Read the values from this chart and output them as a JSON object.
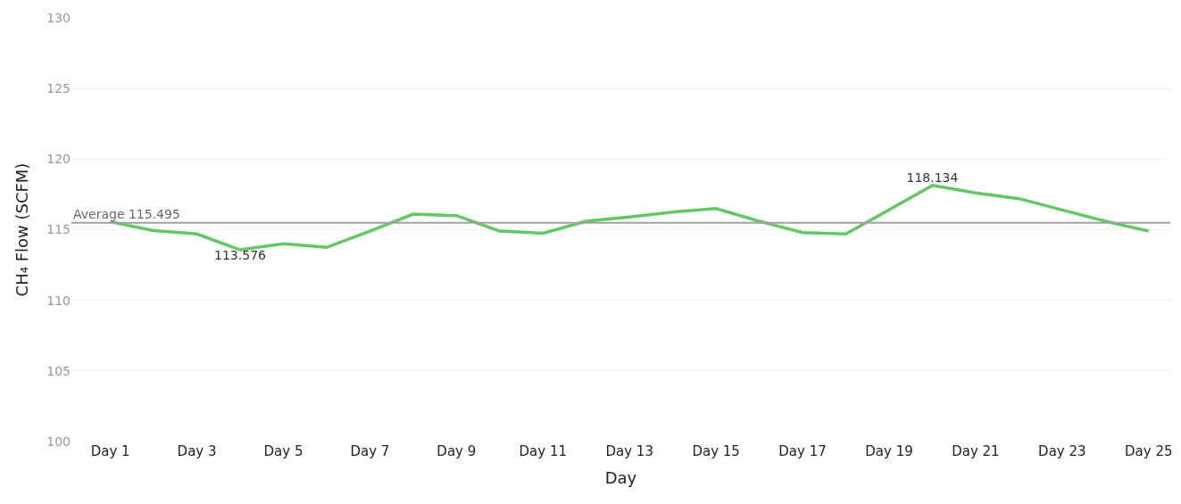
{
  "chart_data": {
    "type": "line",
    "xlabel": "Day",
    "ylabel": "CH₄ Flow (SCFM)",
    "categories": [
      "Day 1",
      null,
      "Day 3",
      null,
      "Day 5",
      null,
      "Day 7",
      null,
      "Day 9",
      null,
      "Day 11",
      null,
      "Day 13",
      null,
      "Day 15",
      null,
      "Day 17",
      null,
      "Day 19",
      null,
      "Day 21",
      null,
      "Day 23",
      null,
      "Day 25"
    ],
    "series": [
      {
        "color": "#63c763",
        "values": [
          115.56,
          114.94,
          114.7,
          113.576,
          114.0,
          113.75,
          114.9,
          116.1,
          116.0,
          114.9,
          114.75,
          115.6,
          115.9,
          116.25,
          116.5,
          115.6,
          114.8,
          114.7,
          116.4,
          118.134,
          117.6,
          117.2,
          116.4,
          115.6,
          114.9
        ],
        "value_labels": [
          null,
          null,
          null,
          "113.576",
          null,
          null,
          null,
          null,
          null,
          null,
          null,
          null,
          null,
          null,
          null,
          null,
          null,
          null,
          null,
          "118.134",
          null,
          null,
          null,
          null,
          null
        ]
      }
    ],
    "ylim": [
      100,
      130
    ],
    "yticks": [
      100,
      105,
      110,
      115,
      120,
      125,
      130
    ],
    "grid": "y",
    "ref_lines": [
      {
        "axis": "y",
        "value": 115.495,
        "label": "Average 115.495",
        "color": "#a0a0a0"
      }
    ]
  }
}
